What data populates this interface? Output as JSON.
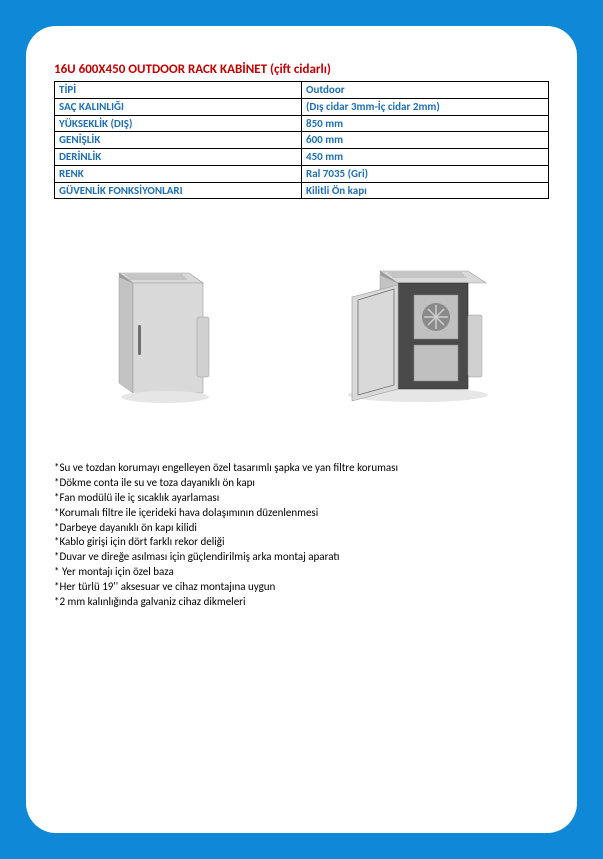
{
  "title": "16U 600X450 OUTDOOR RACK KABİNET (çift cidarlı)",
  "spec_rows": [
    {
      "label": "TİPİ",
      "value": "Outdoor"
    },
    {
      "label": "SAÇ KALINLIĞI",
      "value": "(Dış cidar 3mm-İç cidar 2mm)"
    },
    {
      "label": "YÜKSEKLİK (DIŞ)",
      "value": "850 mm"
    },
    {
      "label": "GENİŞLİK",
      "value": "600 mm"
    },
    {
      "label": "DERİNLİK",
      "value": "450 mm"
    },
    {
      "label": "RENK",
      "value": "Ral 7035 (Gri)"
    },
    {
      "label": "GÜVENLİK FONKSİYONLARI",
      "value": "Kilitli Ön kapı"
    }
  ],
  "features": [
    "*Su ve tozdan korumayı engelleyen özel tasarımlı şapka ve yan filtre koruması",
    "*Dökme conta ile su ve toza dayanıklı ön kapı",
    "*Fan modülü ile iç sıcaklık ayarlaması",
    "*Korumalı filtre ile içerideki hava dolaşımının düzenlenmesi",
    "*Darbeye dayanıklı ön kapı kilidi",
    "*Kablo girişi için dört farklı rekor deliği",
    "*Duvar ve direğe asılması için güçlendirilmiş arka montaj aparatı",
    "* Yer montajı için özel baza",
    "*Her türlü 19'' aksesuar ve cihaz montajına uygun",
    "*2 mm kalınlığında galvaniz cihaz dikmeleri"
  ],
  "colors": {
    "page_bg": "#1088d8",
    "card_bg": "#ffffff",
    "title": "#c00000",
    "spec_text": "#1f6fb5",
    "border": "#000000",
    "cabinet_light": "#d8d9d8",
    "cabinet_mid": "#bcbdbc",
    "cabinet_dark": "#9b9c9b",
    "cabinet_shadow": "#6f6f6f"
  }
}
